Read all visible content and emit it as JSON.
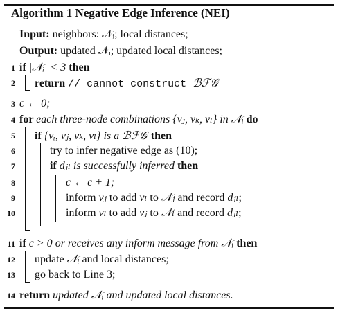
{
  "title": "Algorithm 1 Negative Edge Inference (NEI)",
  "input": {
    "label": "Input:",
    "text": "neighbors: 𝒩ᵢ; local distances;"
  },
  "output": {
    "label": "Output:",
    "text": "updated 𝒩ᵢ; updated local distances;"
  },
  "lines": [
    {
      "num": "1",
      "parts": [
        {
          "k": "kw",
          "t": "if "
        },
        {
          "k": "math",
          "t": "|𝒩ᵢ| < 3 "
        },
        {
          "k": "kw",
          "t": "then"
        }
      ]
    },
    {
      "num": "2",
      "parts": [
        {
          "k": "kw",
          "t": "return "
        },
        {
          "k": "tt",
          "t": "// cannot construct "
        },
        {
          "k": "cal",
          "t": "ℬℱ𝒢"
        }
      ]
    },
    {
      "num": "3",
      "parts": [
        {
          "k": "math",
          "t": "c ← 0;"
        }
      ]
    },
    {
      "num": "4",
      "parts": [
        {
          "k": "kw",
          "t": "for "
        },
        {
          "k": "it",
          "t": "each three-node combinations "
        },
        {
          "k": "math",
          "t": "{vⱼ, vₖ, vₗ}"
        },
        {
          "k": "it",
          "t": " in "
        },
        {
          "k": "math",
          "t": "𝒩ᵢ "
        },
        {
          "k": "kw",
          "t": "do"
        }
      ]
    },
    {
      "num": "5",
      "parts": [
        {
          "k": "kw",
          "t": "if "
        },
        {
          "k": "math",
          "t": "{vᵢ, vⱼ, vₖ, vₗ}"
        },
        {
          "k": "it",
          "t": " is a "
        },
        {
          "k": "cal",
          "t": "ℬℱ𝒢 "
        },
        {
          "k": "kw",
          "t": "then"
        }
      ]
    },
    {
      "num": "6",
      "parts": [
        {
          "k": "n",
          "t": "try to infer negative edge as (10);"
        }
      ]
    },
    {
      "num": "7",
      "parts": [
        {
          "k": "kw",
          "t": "if "
        },
        {
          "k": "math",
          "t": "dⱼₗ"
        },
        {
          "k": "it",
          "t": " is successfully inferred "
        },
        {
          "k": "kw",
          "t": "then"
        }
      ]
    },
    {
      "num": "8",
      "parts": [
        {
          "k": "math",
          "t": "c ← c + 1;"
        }
      ]
    },
    {
      "num": "9",
      "parts": [
        {
          "k": "n",
          "t": "inform "
        },
        {
          "k": "math",
          "t": "vⱼ"
        },
        {
          "k": "n",
          "t": " to add "
        },
        {
          "k": "math",
          "t": "vₗ"
        },
        {
          "k": "n",
          "t": " to "
        },
        {
          "k": "math",
          "t": "𝒩ⱼ"
        },
        {
          "k": "n",
          "t": " and record "
        },
        {
          "k": "math",
          "t": "dⱼₗ"
        },
        {
          "k": "n",
          "t": ";"
        }
      ]
    },
    {
      "num": "10",
      "parts": [
        {
          "k": "n",
          "t": "inform "
        },
        {
          "k": "math",
          "t": "vₗ"
        },
        {
          "k": "n",
          "t": " to add "
        },
        {
          "k": "math",
          "t": "vⱼ"
        },
        {
          "k": "n",
          "t": " to "
        },
        {
          "k": "math",
          "t": "𝒩ₗ"
        },
        {
          "k": "n",
          "t": " and record "
        },
        {
          "k": "math",
          "t": "dⱼₗ"
        },
        {
          "k": "n",
          "t": ";"
        }
      ]
    },
    {
      "num": "11",
      "parts": [
        {
          "k": "kw",
          "t": "if "
        },
        {
          "k": "math",
          "t": "c > 0"
        },
        {
          "k": "it",
          "t": " or receives any inform message from "
        },
        {
          "k": "math",
          "t": "𝒩ᵢ "
        },
        {
          "k": "kw",
          "t": "then"
        }
      ]
    },
    {
      "num": "12",
      "parts": [
        {
          "k": "n",
          "t": "update "
        },
        {
          "k": "math",
          "t": "𝒩ᵢ"
        },
        {
          "k": "n",
          "t": " and local distances;"
        }
      ]
    },
    {
      "num": "13",
      "parts": [
        {
          "k": "n",
          "t": "go back to Line 3;"
        }
      ]
    },
    {
      "num": "14",
      "parts": [
        {
          "k": "kw",
          "t": "return "
        },
        {
          "k": "it",
          "t": "updated "
        },
        {
          "k": "math",
          "t": "𝒩ᵢ"
        },
        {
          "k": "it",
          "t": " and updated local distances."
        }
      ]
    }
  ]
}
